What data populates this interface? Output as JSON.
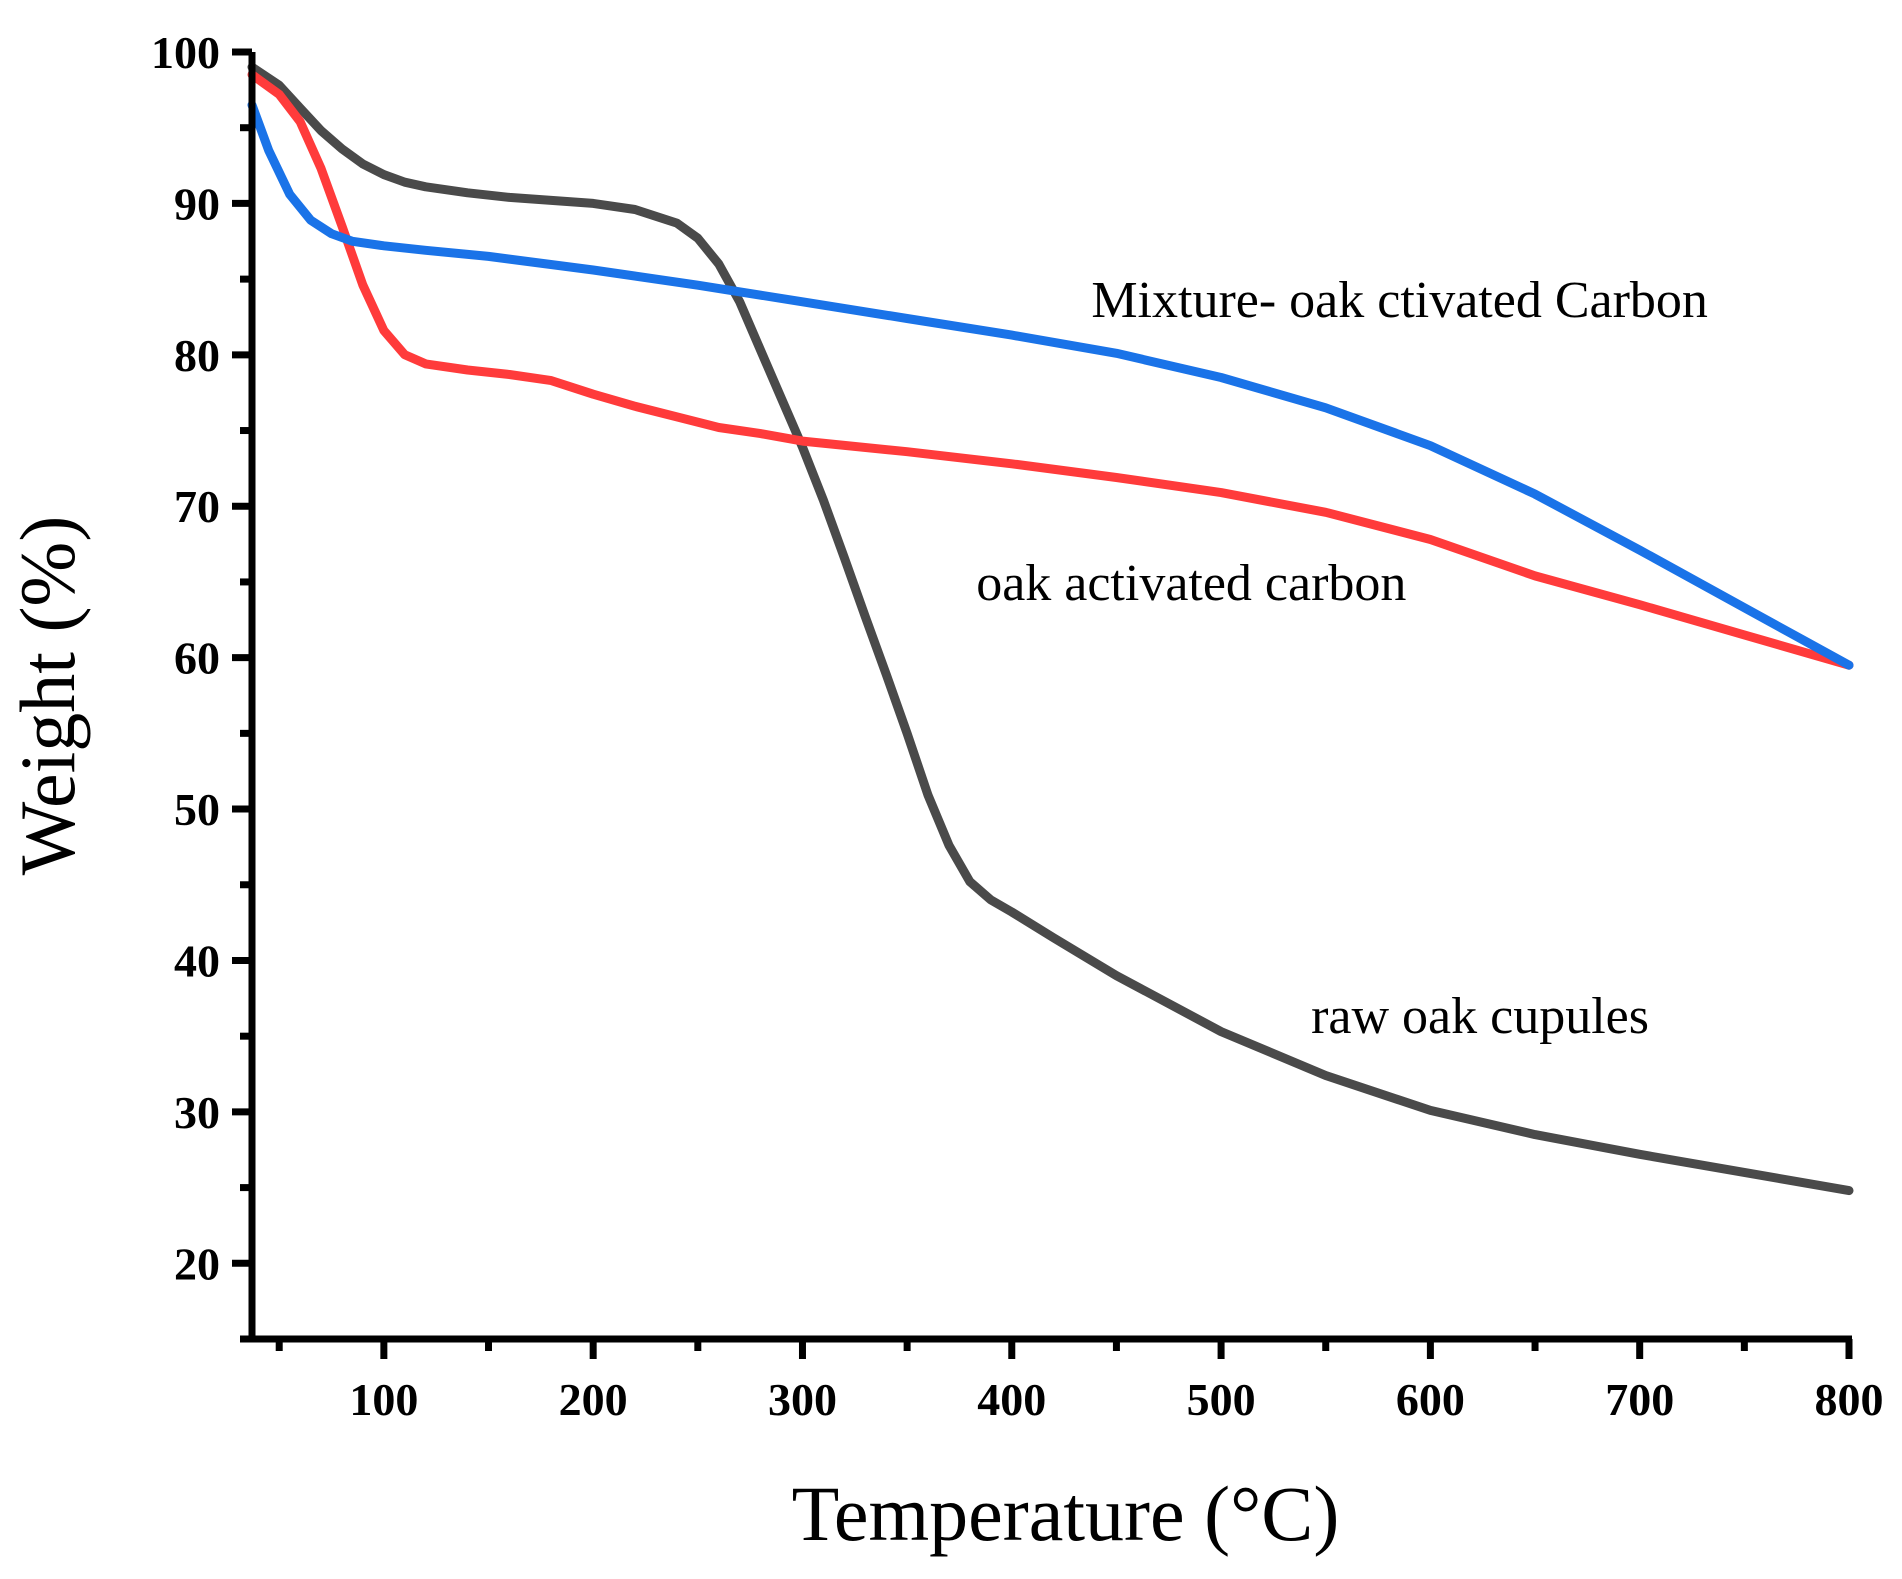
{
  "chart_data": {
    "type": "line",
    "xlabel": "Temperature (°C)",
    "ylabel": "Weight (%)",
    "xlim": [
      37,
      800
    ],
    "ylim": [
      15,
      100
    ],
    "x_ticks": [
      100,
      200,
      300,
      400,
      500,
      600,
      700,
      800
    ],
    "y_ticks": [
      20,
      30,
      40,
      50,
      60,
      70,
      80,
      90,
      100
    ],
    "grid": false,
    "legend": "none",
    "series": [
      {
        "color": "#4a4a4a",
        "x": [
          37,
          50,
          60,
          70,
          80,
          90,
          100,
          110,
          120,
          140,
          160,
          180,
          200,
          220,
          240,
          250,
          260,
          270,
          280,
          290,
          300,
          310,
          320,
          330,
          340,
          350,
          360,
          370,
          380,
          390,
          400,
          420,
          450,
          500,
          550,
          600,
          650,
          700,
          750,
          800
        ],
        "y": [
          99,
          97.8,
          96.3,
          94.8,
          93.6,
          92.6,
          91.9,
          91.4,
          91.1,
          90.7,
          90.4,
          90.2,
          90.0,
          89.6,
          88.7,
          87.7,
          86.0,
          83.5,
          80.3,
          77.1,
          73.9,
          70.4,
          66.6,
          62.7,
          58.9,
          55.0,
          50.9,
          47.6,
          45.2,
          44.0,
          43.2,
          41.5,
          39.0,
          35.3,
          32.4,
          30.1,
          28.5,
          27.2,
          26.0,
          24.8
        ]
      },
      {
        "color": "#ff3b3b",
        "x": [
          37,
          50,
          60,
          70,
          80,
          90,
          100,
          110,
          120,
          140,
          160,
          180,
          200,
          220,
          240,
          260,
          280,
          300,
          350,
          400,
          450,
          500,
          550,
          600,
          650,
          700,
          750,
          800
        ],
        "y": [
          98.5,
          97.2,
          95.4,
          92.3,
          88.5,
          84.6,
          81.6,
          80.0,
          79.4,
          79.0,
          78.7,
          78.3,
          77.4,
          76.6,
          75.9,
          75.2,
          74.8,
          74.3,
          73.6,
          72.8,
          71.9,
          70.9,
          69.6,
          67.8,
          65.4,
          63.5,
          61.5,
          59.5
        ]
      },
      {
        "color": "#1a73e8",
        "x": [
          37,
          45,
          55,
          65,
          75,
          85,
          100,
          120,
          150,
          200,
          250,
          300,
          350,
          400,
          450,
          500,
          550,
          600,
          650,
          700,
          750,
          800
        ],
        "y": [
          96.5,
          93.5,
          90.6,
          88.9,
          88.0,
          87.5,
          87.2,
          86.9,
          86.5,
          85.6,
          84.6,
          83.5,
          82.4,
          81.3,
          80.1,
          78.5,
          76.5,
          74.0,
          70.8,
          67.1,
          63.3,
          59.5
        ]
      }
    ],
    "annotations": [
      {
        "text": "Mixture- oak ctivated Carbon",
        "x": 438,
        "y": 82.5
      },
      {
        "text": "oak activated carbon",
        "x": 383,
        "y": 63.8
      },
      {
        "text": "raw oak cupules",
        "x": 543,
        "y": 35.2
      }
    ]
  }
}
